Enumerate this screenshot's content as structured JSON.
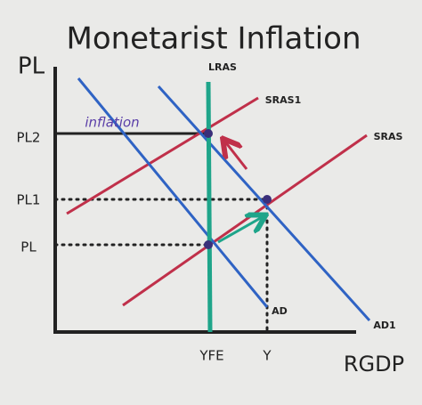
{
  "title": "Monetarist Inflation",
  "axes": {
    "y_label": "PL",
    "x_label": "RGDP"
  },
  "price_levels": [
    "PL2",
    "PL1",
    "PL"
  ],
  "output_levels": [
    "YFE",
    "Y"
  ],
  "curves": {
    "lras": "LRAS",
    "sras1": "SRAS1",
    "sras": "SRAS",
    "ad": "AD",
    "ad1": "AD1"
  },
  "annotation": "inflation"
}
